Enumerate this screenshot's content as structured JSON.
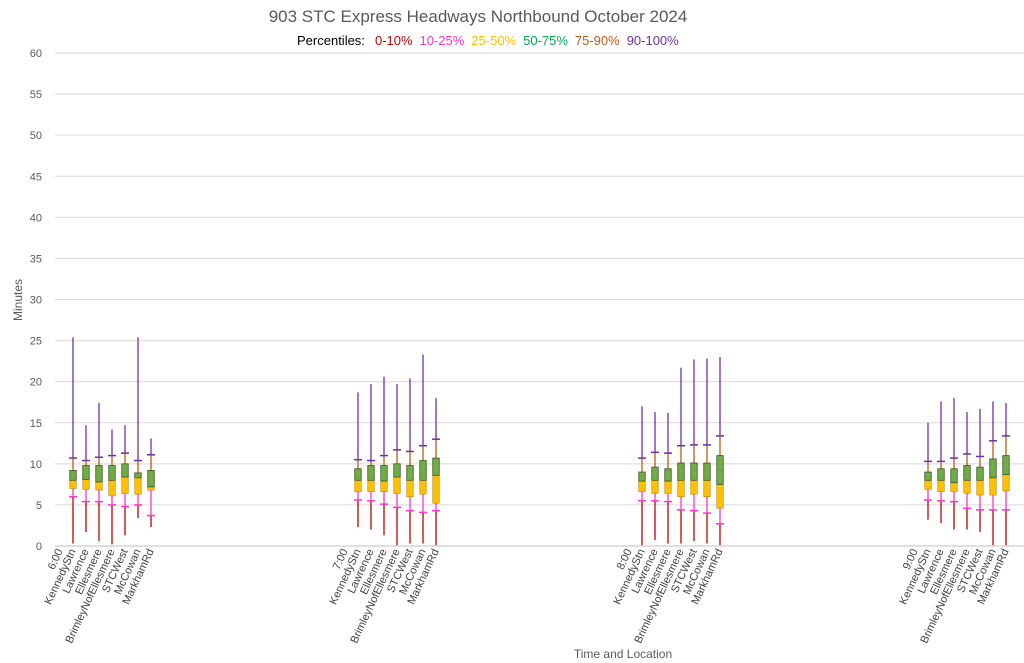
{
  "chart_data": {
    "type": "box",
    "title": "903 STC Express Headways Northbound October 2024",
    "xlabel": "Time and Location",
    "ylabel": "Minutes",
    "ylim": [
      0,
      60
    ],
    "yticks": [
      0,
      5,
      10,
      15,
      20,
      25,
      30,
      35,
      40,
      45,
      50,
      55,
      60
    ],
    "grid": true,
    "legend": {
      "label": "Percentiles:",
      "placement": "top-center",
      "entries": [
        {
          "name": "0-10%",
          "color": "#C00000"
        },
        {
          "name": "10-25%",
          "color": "#FF33CC"
        },
        {
          "name": "25-50%",
          "color": "#FFC000"
        },
        {
          "name": "50-75%",
          "color": "#00B050"
        },
        {
          "name": "75-90%",
          "color": "#C55A11"
        },
        {
          "name": "90-100%",
          "color": "#7030A0"
        }
      ]
    },
    "stops": [
      "KennedyStn",
      "Lawrence",
      "Ellesmere",
      "BrimleyNofEllesmere",
      "STCWest",
      "McCowan",
      "MarkhamRd"
    ],
    "series_fields": [
      "min",
      "p10",
      "p25",
      "median",
      "p75",
      "p90",
      "max"
    ],
    "groups": [
      {
        "time": "6:00",
        "values": [
          [
            0.3,
            6.0,
            7.0,
            8.0,
            9.2,
            10.7,
            25.4
          ],
          [
            1.7,
            5.4,
            6.9,
            8.1,
            9.8,
            10.4,
            14.7
          ],
          [
            0.6,
            5.4,
            6.8,
            7.8,
            9.8,
            10.8,
            17.4
          ],
          [
            0.2,
            5.0,
            6.1,
            8.0,
            9.8,
            11.0,
            14.2
          ],
          [
            1.3,
            4.8,
            6.4,
            8.4,
            10.0,
            11.3,
            14.7
          ],
          [
            3.4,
            5.0,
            6.3,
            8.3,
            8.9,
            10.4,
            25.4
          ],
          [
            2.3,
            3.7,
            6.8,
            7.2,
            9.2,
            11.1,
            13.1
          ]
        ]
      },
      {
        "time": "7:00",
        "values": [
          [
            2.3,
            5.6,
            6.6,
            8.0,
            9.4,
            10.5,
            18.7
          ],
          [
            2.0,
            5.5,
            6.6,
            8.0,
            9.8,
            10.4,
            19.7
          ],
          [
            1.3,
            5.1,
            6.6,
            7.9,
            9.8,
            11.0,
            20.6
          ],
          [
            0.1,
            4.7,
            6.4,
            8.4,
            10.0,
            11.7,
            19.7
          ],
          [
            0.3,
            4.3,
            6.0,
            8.0,
            9.8,
            11.5,
            20.4
          ],
          [
            0.3,
            4.1,
            6.3,
            8.0,
            10.4,
            12.2,
            23.3
          ],
          [
            0.1,
            4.3,
            5.2,
            8.6,
            10.7,
            13.0,
            18.0
          ]
        ]
      },
      {
        "time": "8:00",
        "values": [
          [
            0.1,
            5.5,
            6.6,
            7.9,
            9.0,
            10.7,
            17.0
          ],
          [
            0.7,
            5.5,
            6.4,
            8.0,
            9.6,
            11.4,
            16.3
          ],
          [
            0.3,
            5.4,
            6.4,
            7.9,
            9.4,
            11.3,
            16.2
          ],
          [
            0.3,
            4.4,
            6.0,
            8.0,
            10.1,
            12.2,
            21.7
          ],
          [
            0.6,
            4.3,
            6.3,
            8.0,
            10.1,
            12.3,
            22.7
          ],
          [
            0.3,
            4.0,
            6.0,
            8.0,
            10.1,
            12.3,
            22.8
          ],
          [
            0.1,
            2.7,
            4.6,
            7.5,
            11.0,
            13.4,
            23.0
          ]
        ]
      },
      {
        "time": "9:00",
        "values": [
          [
            3.2,
            5.6,
            6.9,
            8.0,
            9.0,
            10.3,
            15.0
          ],
          [
            2.8,
            5.5,
            6.6,
            8.0,
            9.4,
            10.3,
            17.6
          ],
          [
            2.0,
            5.4,
            6.6,
            7.7,
            9.4,
            10.7,
            18.0
          ],
          [
            2.0,
            4.6,
            6.4,
            8.0,
            9.8,
            11.2,
            16.3
          ],
          [
            1.7,
            4.4,
            6.2,
            8.0,
            9.6,
            10.9,
            16.7
          ],
          [
            0.1,
            4.4,
            6.2,
            8.3,
            10.6,
            12.8,
            17.6
          ],
          [
            0.1,
            4.4,
            6.7,
            8.7,
            11.0,
            13.4,
            17.4
          ]
        ]
      }
    ]
  }
}
